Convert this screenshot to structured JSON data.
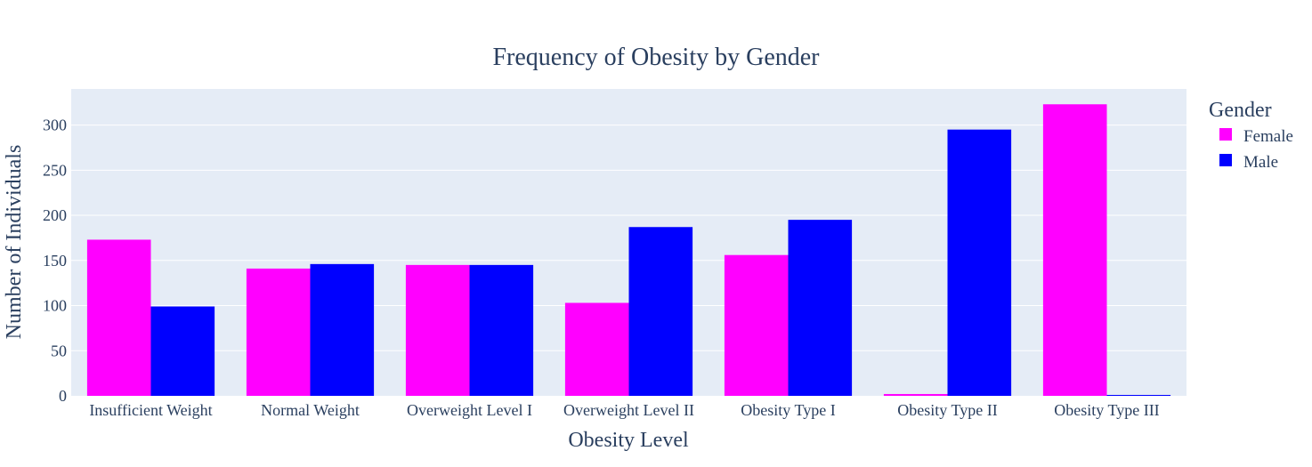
{
  "chart_data": {
    "type": "bar",
    "title": "Frequency of Obesity by Gender",
    "xlabel": "Obesity Level",
    "ylabel": "Number of Individuals",
    "categories": [
      "Insufficient Weight",
      "Normal Weight",
      "Overweight Level I",
      "Overweight Level II",
      "Obesity Type I",
      "Obesity Type II",
      "Obesity Type III"
    ],
    "series": [
      {
        "name": "Female",
        "color": "#ff00ff",
        "values": [
          173,
          141,
          145,
          103,
          156,
          2,
          323
        ]
      },
      {
        "name": "Male",
        "color": "#0000ff",
        "values": [
          99,
          146,
          145,
          187,
          195,
          295,
          1
        ]
      }
    ],
    "ylim": [
      0,
      340
    ],
    "yticks": [
      0,
      50,
      100,
      150,
      200,
      250,
      300
    ],
    "grid": true,
    "legend": {
      "title": "Gender",
      "placement": "right"
    }
  }
}
